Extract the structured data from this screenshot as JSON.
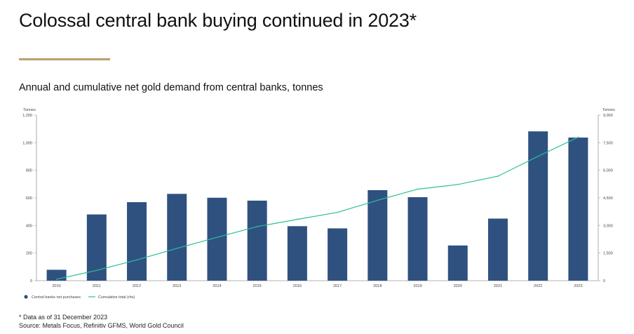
{
  "header": {
    "title": "Colossal central bank buying continued in 2023*",
    "subtitle": "Annual and cumulative net gold demand from central banks, tonnes"
  },
  "footnotes": {
    "note": "* Data as of 31 December 2023",
    "source": "Source: Metals Focus, Refinitiv GFMS, World Gold Council"
  },
  "colors": {
    "bars": "#2f5180",
    "line": "#2bbf96",
    "accent_rule": "#b8a070"
  },
  "chart_data": {
    "type": "bar",
    "categories": [
      "2010",
      "2011",
      "2012",
      "2013",
      "2014",
      "2015",
      "2016",
      "2017",
      "2018",
      "2019",
      "2020",
      "2021",
      "2022",
      "2023"
    ],
    "series": [
      {
        "name": "Central banks net purchases",
        "type": "bar",
        "axis": "left",
        "values": [
          79,
          480,
          569,
          629,
          601,
          580,
          395,
          379,
          656,
          605,
          255,
          450,
          1082,
          1037
        ]
      },
      {
        "name": "Cumulative total (rhs)",
        "type": "line",
        "axis": "right",
        "values": [
          79,
          559,
          1128,
          1757,
          2358,
          2938,
          3333,
          3712,
          4368,
          4973,
          5228,
          5678,
          6760,
          7797
        ]
      }
    ],
    "left_axis": {
      "label": "Tonnes",
      "ylim": [
        0,
        1200
      ],
      "ticks": [
        "0",
        "200",
        "400",
        "600",
        "800",
        "1,000",
        "1,200"
      ]
    },
    "right_axis": {
      "label": "Tonnes",
      "ylim": [
        0,
        9000
      ],
      "ticks": [
        "0",
        "1,500",
        "3,000",
        "4,500",
        "6,000",
        "7,500",
        "9,000"
      ]
    },
    "legend_position": "bottom-left",
    "grid": false
  }
}
